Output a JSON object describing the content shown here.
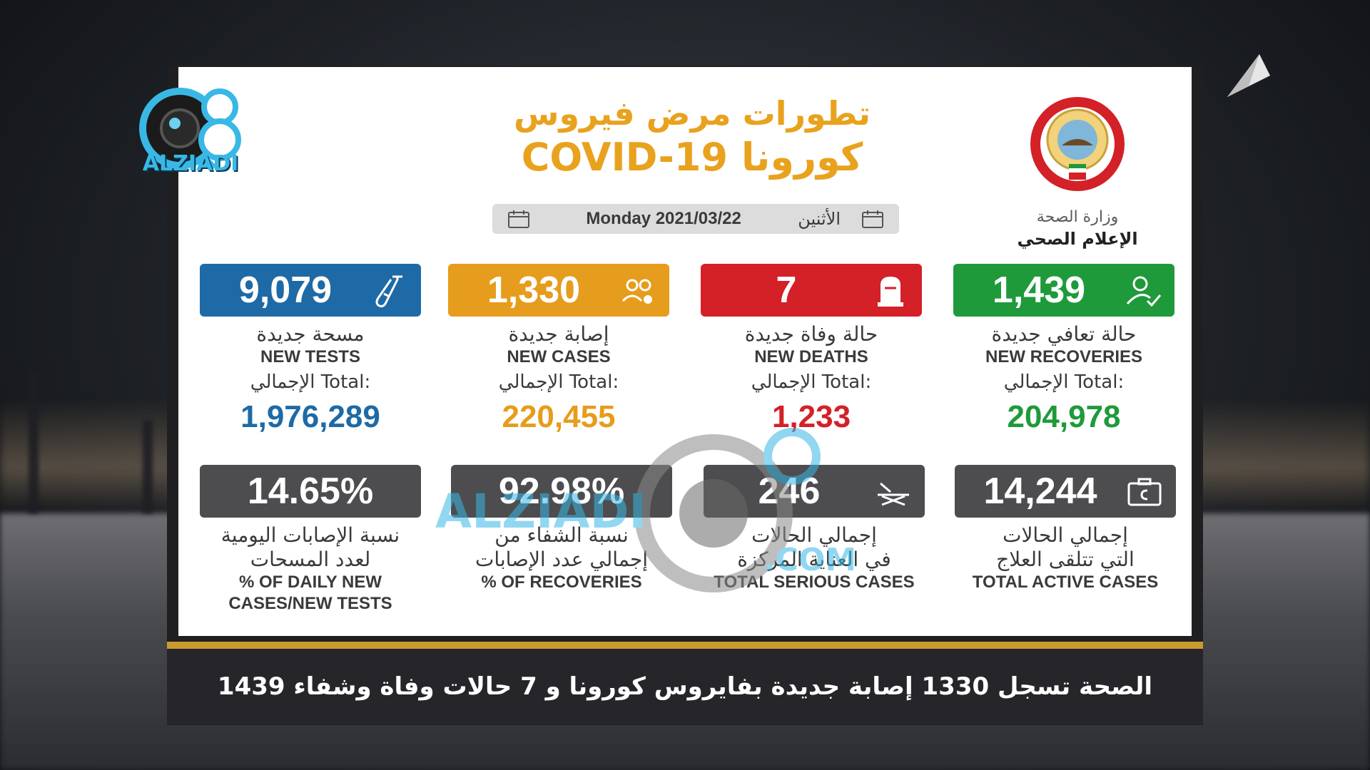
{
  "brand": {
    "logo_text": "ALZIADI",
    "watermark_text": "ALZIADI",
    "watermark_domain": ".COM"
  },
  "ministry": {
    "line1": "وزارة الصحة",
    "line2": "الإعلام الصحي"
  },
  "title": {
    "arabic": "تطورات مرض فيروس",
    "line2": "COVID-19 كورونا"
  },
  "date": {
    "english": "Monday 2021/03/22",
    "arabic": "الأثنين"
  },
  "stats_top": [
    {
      "value": "9,079",
      "label_ar": "مسحة جديدة",
      "label_en": "NEW TESTS",
      "total_label": "الإجمالي Total:",
      "total": "1,976,289",
      "color": "#1e6aa6",
      "total_color": "#1e6aa6",
      "icon": "test-tube-icon"
    },
    {
      "value": "1,330",
      "label_ar": "إصابة جديدة",
      "label_en": "NEW CASES",
      "total_label": "الإجمالي Total:",
      "total": "220,455",
      "color": "#e69c1c",
      "total_color": "#e69c1c",
      "icon": "people-virus-icon"
    },
    {
      "value": "7",
      "label_ar": "حالة وفاة جديدة",
      "label_en": "NEW DEATHS",
      "total_label": "الإجمالي Total:",
      "total": "1,233",
      "color": "#d42027",
      "total_color": "#d42027",
      "icon": "tombstone-icon"
    },
    {
      "value": "1,439",
      "label_ar": "حالة تعافي جديدة",
      "label_en": "NEW RECOVERIES",
      "total_label": "الإجمالي Total:",
      "total": "204,978",
      "color": "#1f9a3b",
      "total_color": "#1f9a3b",
      "icon": "user-check-icon"
    }
  ],
  "stats_bottom": [
    {
      "value": "14.65%",
      "label_ar1": "نسبة الإصابات اليومية",
      "label_ar2": "لعدد المسحات",
      "label_en1": "% OF DAILY NEW",
      "label_en2": "CASES/NEW TESTS",
      "icon": ""
    },
    {
      "value": "92.98%",
      "label_ar1": "نسبة الشفاء من",
      "label_ar2": "إجمالي عدد الإصابات",
      "label_en1": "% OF RECOVERIES",
      "label_en2": "",
      "icon": ""
    },
    {
      "value": "246",
      "label_ar1": "إجمالي الحالات",
      "label_ar2": "في العناية المركزة",
      "label_en1": "TOTAL SERIOUS CASES",
      "label_en2": "",
      "icon": "hospital-bed-icon"
    },
    {
      "value": "14,244",
      "label_ar1": "إجمالي الحالات",
      "label_ar2": "التي تتلقى العلاج",
      "label_en1": "TOTAL ACTIVE CASES",
      "label_en2": "",
      "icon": "medical-bag-icon"
    }
  ],
  "ticker": {
    "text": "الصحة تسجل 1330 إصابة جديدة بفايروس كورونا  و 7 حالات وفاة وشفاء 1439"
  }
}
